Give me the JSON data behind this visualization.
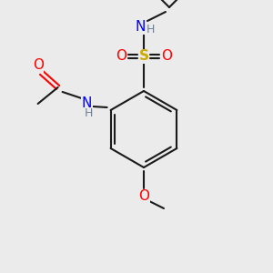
{
  "background_color": "#ebebeb",
  "atom_colors": {
    "C": "#1a1a1a",
    "H": "#708090",
    "N": "#0000ff",
    "O": "#ff0000",
    "S": "#ccaa00"
  },
  "bond_color": "#1a1a1a",
  "figsize": [
    3.0,
    3.0
  ],
  "dpi": 100
}
